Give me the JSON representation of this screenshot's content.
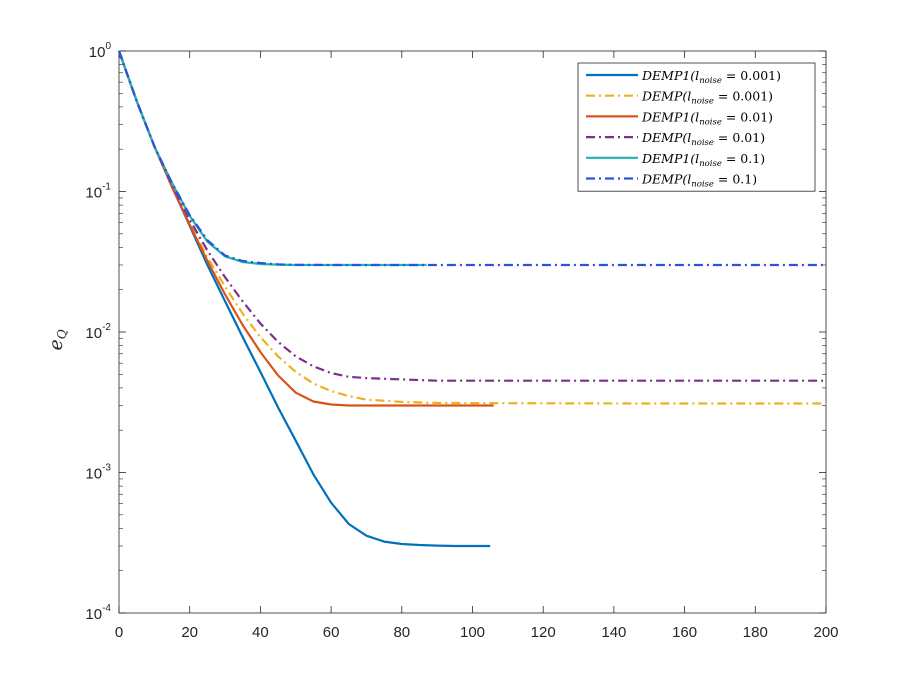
{
  "chart_data": {
    "type": "line",
    "title": "",
    "xlabel": "",
    "ylabel": {
      "base": "e",
      "sub": "Q"
    },
    "xlim": [
      0,
      200
    ],
    "ylim": [
      0.0001,
      1
    ],
    "yscale": "log",
    "grid": false,
    "legend_position": "top-right",
    "x_ticks": [
      {
        "value": 0,
        "label": "0"
      },
      {
        "value": 20,
        "label": "20"
      },
      {
        "value": 40,
        "label": "40"
      },
      {
        "value": 60,
        "label": "60"
      },
      {
        "value": 80,
        "label": "80"
      },
      {
        "value": 100,
        "label": "100"
      },
      {
        "value": 120,
        "label": "120"
      },
      {
        "value": 140,
        "label": "140"
      },
      {
        "value": 160,
        "label": "160"
      },
      {
        "value": 180,
        "label": "180"
      },
      {
        "value": 200,
        "label": "200"
      }
    ],
    "y_ticks": [
      {
        "value": 1,
        "base": "10",
        "exp": "0"
      },
      {
        "value": 0.1,
        "base": "10",
        "exp": "-1"
      },
      {
        "value": 0.01,
        "base": "10",
        "exp": "-2"
      },
      {
        "value": 0.001,
        "base": "10",
        "exp": "-3"
      },
      {
        "value": 0.0001,
        "base": "10",
        "exp": "-4"
      }
    ],
    "series": [
      {
        "legend": {
          "pre": "DEMP1(l",
          "sub": "noise",
          "post": " = 0.001)"
        },
        "color": "#0072BD",
        "dash": "solid",
        "x": [
          0,
          5,
          10,
          15,
          20,
          25,
          30,
          35,
          40,
          45,
          50,
          55,
          60,
          65,
          70,
          75,
          80,
          85,
          90,
          95,
          100,
          105
        ],
        "y": [
          1.0,
          0.44,
          0.21,
          0.108,
          0.057,
          0.03,
          0.0165,
          0.0092,
          0.0052,
          0.0029,
          0.00168,
          0.00097,
          0.00061,
          0.00043,
          0.000355,
          0.000322,
          0.00031,
          0.000305,
          0.000302,
          0.0003,
          0.0003,
          0.0003
        ]
      },
      {
        "legend": {
          "pre": "DEMP(l",
          "sub": "noise",
          "post": " = 0.001)"
        },
        "color": "#EDB120",
        "dash": "dashdot",
        "x": [
          0,
          5,
          10,
          15,
          20,
          25,
          30,
          35,
          40,
          45,
          50,
          55,
          60,
          65,
          70,
          80,
          90,
          100,
          120,
          150,
          200
        ],
        "y": [
          1.0,
          0.44,
          0.21,
          0.11,
          0.06,
          0.034,
          0.021,
          0.0135,
          0.0092,
          0.0067,
          0.0052,
          0.0043,
          0.0038,
          0.0035,
          0.0033,
          0.00318,
          0.00313,
          0.00312,
          0.00311,
          0.0031,
          0.0031
        ]
      },
      {
        "legend": {
          "pre": "DEMP1(l",
          "sub": "noise",
          "post": " = 0.01)"
        },
        "color": "#D95319",
        "dash": "solid",
        "x": [
          0,
          5,
          10,
          15,
          20,
          25,
          30,
          35,
          40,
          45,
          50,
          55,
          60,
          65,
          70,
          80,
          90,
          100,
          106
        ],
        "y": [
          1.0,
          0.44,
          0.21,
          0.108,
          0.058,
          0.032,
          0.0185,
          0.0112,
          0.0072,
          0.0049,
          0.0037,
          0.0032,
          0.00305,
          0.003,
          0.003,
          0.003,
          0.003,
          0.003,
          0.003
        ]
      },
      {
        "legend": {
          "pre": "DEMP(l",
          "sub": "noise",
          "post": " = 0.01)"
        },
        "color": "#7E2F8E",
        "dash": "dashdot",
        "x": [
          0,
          5,
          10,
          15,
          20,
          25,
          30,
          35,
          40,
          45,
          50,
          55,
          60,
          65,
          70,
          80,
          90,
          100,
          120,
          150,
          200
        ],
        "y": [
          1.0,
          0.44,
          0.21,
          0.112,
          0.063,
          0.038,
          0.0245,
          0.0165,
          0.0115,
          0.0085,
          0.0067,
          0.0057,
          0.0051,
          0.0048,
          0.0047,
          0.0046,
          0.0045,
          0.0045,
          0.0045,
          0.0045,
          0.0045
        ]
      },
      {
        "legend": {
          "pre": "DEMP1(l",
          "sub": "noise",
          "post": " = 0.1)"
        },
        "color": "#1FB3B3",
        "dash": "solid",
        "x": [
          0,
          5,
          10,
          15,
          20,
          25,
          30,
          35,
          40,
          45,
          50,
          60,
          70,
          80,
          87
        ],
        "y": [
          1.0,
          0.44,
          0.21,
          0.115,
          0.067,
          0.044,
          0.0345,
          0.0315,
          0.0305,
          0.0302,
          0.03,
          0.03,
          0.03,
          0.03,
          0.03
        ]
      },
      {
        "legend": {
          "pre": "DEMP(l",
          "sub": "noise",
          "post": " = 0.1)"
        },
        "color": "#2A55D9",
        "dash": "dashdot",
        "x": [
          0,
          5,
          10,
          15,
          20,
          25,
          30,
          35,
          40,
          45,
          50,
          60,
          70,
          80,
          100,
          150,
          200
        ],
        "y": [
          1.0,
          0.44,
          0.21,
          0.115,
          0.068,
          0.045,
          0.035,
          0.032,
          0.031,
          0.0303,
          0.0301,
          0.03,
          0.03,
          0.03,
          0.03,
          0.03,
          0.03
        ]
      }
    ]
  }
}
